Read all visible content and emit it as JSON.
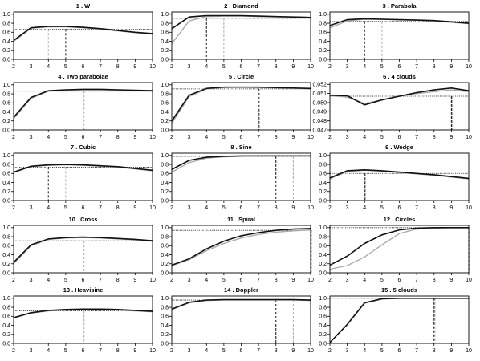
{
  "x_ticks": [
    "2",
    "3",
    "4",
    "5",
    "6",
    "7",
    "8",
    "9",
    "10"
  ],
  "colors": {
    "black_series": "#111111",
    "gray_series": "#aaaaaa",
    "ref_line": "#222222"
  },
  "chart_data": [
    {
      "type": "line",
      "title": "1 .  W",
      "x": [
        2,
        3,
        4,
        5,
        6,
        7,
        8,
        9,
        10
      ],
      "yticks": [
        "0.0",
        "0.2",
        "0.4",
        "0.6",
        "0.8",
        "1.0"
      ],
      "ylim": [
        0,
        1.05
      ],
      "series": [
        {
          "color": "black",
          "values": [
            0.42,
            0.7,
            0.73,
            0.73,
            0.71,
            0.68,
            0.64,
            0.6,
            0.57
          ]
        },
        {
          "color": "gray",
          "values": [
            0.4,
            0.69,
            0.72,
            0.72,
            0.7,
            0.67,
            0.63,
            0.59,
            0.56
          ]
        }
      ],
      "h_ref": 0.67,
      "v_black": 5,
      "v_gray": 4
    },
    {
      "type": "line",
      "title": "2 .  Diamond",
      "x": [
        2,
        3,
        4,
        5,
        6,
        7,
        8,
        9,
        10
      ],
      "yticks": [
        "0.0",
        "0.2",
        "0.4",
        "0.6",
        "0.8",
        "1.0"
      ],
      "ylim": [
        0,
        1.05
      ],
      "series": [
        {
          "color": "black",
          "values": [
            0.68,
            0.94,
            0.97,
            0.97,
            0.97,
            0.96,
            0.95,
            0.94,
            0.93
          ]
        },
        {
          "color": "gray",
          "values": [
            0.35,
            0.85,
            0.95,
            0.96,
            0.96,
            0.95,
            0.94,
            0.93,
            0.92
          ]
        }
      ],
      "h_ref": 0.91,
      "v_black": 4,
      "v_gray": 5
    },
    {
      "type": "line",
      "title": "3 .  Parabola",
      "x": [
        2,
        3,
        4,
        5,
        6,
        7,
        8,
        9,
        10
      ],
      "yticks": [
        "0.0",
        "0.2",
        "0.4",
        "0.6",
        "0.8",
        "1.0"
      ],
      "ylim": [
        0,
        1.05
      ],
      "series": [
        {
          "color": "black",
          "values": [
            0.75,
            0.88,
            0.9,
            0.89,
            0.88,
            0.87,
            0.86,
            0.83,
            0.8
          ]
        },
        {
          "color": "gray",
          "values": [
            0.7,
            0.85,
            0.89,
            0.89,
            0.88,
            0.87,
            0.85,
            0.82,
            0.79
          ]
        }
      ],
      "h_ref": 0.84,
      "v_black": 4,
      "v_gray": 5
    },
    {
      "type": "line",
      "title": "4 .  Two parabolae",
      "x": [
        2,
        3,
        4,
        5,
        6,
        7,
        8,
        9,
        10
      ],
      "yticks": [
        "0.0",
        "0.2",
        "0.4",
        "0.6",
        "0.8",
        "1.0"
      ],
      "ylim": [
        0,
        1.05
      ],
      "series": [
        {
          "color": "black",
          "values": [
            0.28,
            0.72,
            0.87,
            0.89,
            0.9,
            0.9,
            0.89,
            0.88,
            0.87
          ]
        },
        {
          "color": "gray",
          "values": [
            0.25,
            0.7,
            0.86,
            0.88,
            0.89,
            0.89,
            0.88,
            0.87,
            0.86
          ]
        }
      ],
      "h_ref": 0.86,
      "v_black": 6,
      "v_gray": 6
    },
    {
      "type": "line",
      "title": "5 .  Circle",
      "x": [
        2,
        3,
        4,
        5,
        6,
        7,
        8,
        9,
        10
      ],
      "yticks": [
        "0.0",
        "0.2",
        "0.4",
        "0.6",
        "0.8",
        "1.0"
      ],
      "ylim": [
        0,
        1.05
      ],
      "series": [
        {
          "color": "black",
          "values": [
            0.2,
            0.77,
            0.92,
            0.95,
            0.95,
            0.95,
            0.94,
            0.93,
            0.92
          ]
        },
        {
          "color": "gray",
          "values": [
            0.15,
            0.74,
            0.91,
            0.94,
            0.95,
            0.94,
            0.93,
            0.92,
            0.91
          ]
        }
      ],
      "h_ref": 0.91,
      "v_black": 7,
      "v_gray": 7
    },
    {
      "type": "line",
      "title": "6 .  4 clouds",
      "x": [
        2,
        3,
        4,
        5,
        6,
        7,
        8,
        9,
        10
      ],
      "yticks": [
        "0.047",
        "0.048",
        "0.049",
        "0.050",
        "0.051",
        "0.052"
      ],
      "ylim": [
        0.047,
        0.0522
      ],
      "series": [
        {
          "color": "black",
          "values": [
            0.0508,
            0.05075,
            0.04975,
            0.0503,
            0.0507,
            0.0511,
            0.0514,
            0.0516,
            0.0513
          ]
        },
        {
          "color": "gray",
          "values": [
            0.05075,
            0.0506,
            0.0499,
            0.0503,
            0.0507,
            0.051,
            0.0512,
            0.0514,
            0.0512
          ]
        }
      ],
      "h_ref": 0.0507,
      "v_black": 9,
      "v_gray": 9
    },
    {
      "type": "line",
      "title": "7 .  Cubic",
      "x": [
        2,
        3,
        4,
        5,
        6,
        7,
        8,
        9,
        10
      ],
      "yticks": [
        "0.0",
        "0.2",
        "0.4",
        "0.6",
        "0.8",
        "1.0"
      ],
      "ylim": [
        0,
        1.05
      ],
      "series": [
        {
          "color": "black",
          "values": [
            0.63,
            0.76,
            0.79,
            0.8,
            0.79,
            0.77,
            0.75,
            0.71,
            0.67
          ]
        },
        {
          "color": "gray",
          "values": [
            0.62,
            0.75,
            0.78,
            0.79,
            0.78,
            0.76,
            0.74,
            0.7,
            0.66
          ]
        }
      ],
      "h_ref": 0.74,
      "v_black": 4,
      "v_gray": 5
    },
    {
      "type": "line",
      "title": "8 .  Sine",
      "x": [
        2,
        3,
        4,
        5,
        6,
        7,
        8,
        9,
        10
      ],
      "yticks": [
        "0.0",
        "0.2",
        "0.4",
        "0.6",
        "0.8",
        "1.0"
      ],
      "ylim": [
        0,
        1.05
      ],
      "series": [
        {
          "color": "black",
          "values": [
            0.69,
            0.89,
            0.96,
            0.98,
            0.99,
            0.99,
            0.99,
            0.99,
            0.99
          ]
        },
        {
          "color": "gray",
          "values": [
            0.63,
            0.84,
            0.94,
            0.97,
            0.98,
            0.99,
            0.99,
            0.99,
            0.99
          ]
        }
      ],
      "h_ref": 0.98,
      "v_black": 8,
      "v_gray": 9
    },
    {
      "type": "line",
      "title": "9 .  Wedge",
      "x": [
        2,
        3,
        4,
        5,
        6,
        7,
        8,
        9,
        10
      ],
      "yticks": [
        "0.0",
        "0.2",
        "0.4",
        "0.6",
        "0.8",
        "1.0"
      ],
      "ylim": [
        0,
        1.05
      ],
      "series": [
        {
          "color": "black",
          "values": [
            0.5,
            0.66,
            0.68,
            0.66,
            0.63,
            0.6,
            0.57,
            0.53,
            0.49
          ]
        },
        {
          "color": "gray",
          "values": [
            0.48,
            0.64,
            0.67,
            0.65,
            0.62,
            0.59,
            0.56,
            0.52,
            0.48
          ]
        }
      ],
      "h_ref": 0.6,
      "v_black": 4,
      "v_gray": 4
    },
    {
      "type": "line",
      "title": "10 .  Cross",
      "x": [
        2,
        3,
        4,
        5,
        6,
        7,
        8,
        9,
        10
      ],
      "yticks": [
        "0.0",
        "0.2",
        "0.4",
        "0.6",
        "0.8",
        "1.0"
      ],
      "ylim": [
        0,
        1.05
      ],
      "series": [
        {
          "color": "black",
          "values": [
            0.23,
            0.62,
            0.75,
            0.78,
            0.79,
            0.78,
            0.76,
            0.74,
            0.71
          ]
        },
        {
          "color": "gray",
          "values": [
            0.2,
            0.6,
            0.74,
            0.77,
            0.78,
            0.77,
            0.75,
            0.73,
            0.7
          ]
        }
      ],
      "h_ref": 0.71,
      "v_black": 6,
      "v_gray": 6
    },
    {
      "type": "line",
      "title": "11 .  Spiral",
      "x": [
        2,
        3,
        4,
        5,
        6,
        7,
        8,
        9,
        10
      ],
      "yticks": [
        "0.0",
        "0.2",
        "0.4",
        "0.6",
        "0.8",
        "1.0"
      ],
      "ylim": [
        0,
        1.05
      ],
      "series": [
        {
          "color": "black",
          "values": [
            0.17,
            0.31,
            0.53,
            0.7,
            0.82,
            0.89,
            0.94,
            0.97,
            0.98
          ]
        },
        {
          "color": "gray",
          "values": [
            0.16,
            0.29,
            0.49,
            0.65,
            0.77,
            0.85,
            0.9,
            0.93,
            0.95
          ]
        }
      ],
      "h_ref": 0.94,
      "v_black": 10,
      "v_gray": 10
    },
    {
      "type": "line",
      "title": "12 .  Circles",
      "x": [
        2,
        3,
        4,
        5,
        6,
        7,
        8,
        9,
        10
      ],
      "yticks": [
        "0.0",
        "0.2",
        "0.4",
        "0.6",
        "0.8",
        "1.0"
      ],
      "ylim": [
        0,
        1.05
      ],
      "series": [
        {
          "color": "black",
          "values": [
            0.17,
            0.37,
            0.65,
            0.84,
            0.95,
            0.99,
            1.0,
            1.0,
            1.0
          ]
        },
        {
          "color": "gray",
          "values": [
            0.08,
            0.16,
            0.35,
            0.62,
            0.87,
            0.97,
            0.99,
            1.0,
            1.0
          ]
        }
      ],
      "h_ref": 1.0,
      "v_black": 10,
      "v_gray": 10
    },
    {
      "type": "line",
      "title": "13 .  Heavisine",
      "x": [
        2,
        3,
        4,
        5,
        6,
        7,
        8,
        9,
        10
      ],
      "yticks": [
        "0.0",
        "0.2",
        "0.4",
        "0.6",
        "0.8",
        "1.0"
      ],
      "ylim": [
        0,
        1.05
      ],
      "series": [
        {
          "color": "black",
          "values": [
            0.57,
            0.68,
            0.73,
            0.75,
            0.76,
            0.76,
            0.75,
            0.73,
            0.71
          ]
        },
        {
          "color": "gray",
          "values": [
            0.56,
            0.67,
            0.72,
            0.74,
            0.75,
            0.75,
            0.74,
            0.72,
            0.7
          ]
        }
      ],
      "h_ref": 0.72,
      "v_black": 6,
      "v_gray": 6
    },
    {
      "type": "line",
      "title": "14 .  Doppler",
      "x": [
        2,
        3,
        4,
        5,
        6,
        7,
        8,
        9,
        10
      ],
      "yticks": [
        "0.0",
        "0.2",
        "0.4",
        "0.6",
        "0.8",
        "1.0"
      ],
      "ylim": [
        0,
        1.05
      ],
      "series": [
        {
          "color": "black",
          "values": [
            0.76,
            0.91,
            0.96,
            0.97,
            0.97,
            0.97,
            0.97,
            0.97,
            0.96
          ]
        },
        {
          "color": "gray",
          "values": [
            0.75,
            0.9,
            0.95,
            0.96,
            0.96,
            0.96,
            0.96,
            0.96,
            0.95
          ]
        }
      ],
      "h_ref": 0.96,
      "v_black": 8,
      "v_gray": 9
    },
    {
      "type": "line",
      "title": "15 .  5 clouds",
      "x": [
        2,
        3,
        4,
        5,
        6,
        7,
        8,
        9,
        10
      ],
      "yticks": [
        "0.0",
        "0.2",
        "0.4",
        "0.6",
        "0.8",
        "1.0"
      ],
      "ylim": [
        0,
        1.05
      ],
      "series": [
        {
          "color": "black",
          "values": [
            0.02,
            0.42,
            0.9,
            0.99,
            1.0,
            1.0,
            1.0,
            1.0,
            1.0
          ]
        },
        {
          "color": "gray",
          "values": [
            0.02,
            0.41,
            0.89,
            0.98,
            1.0,
            1.0,
            1.0,
            1.0,
            1.0
          ]
        }
      ],
      "h_ref": 1.0,
      "v_black": 8,
      "v_gray": 8
    }
  ]
}
